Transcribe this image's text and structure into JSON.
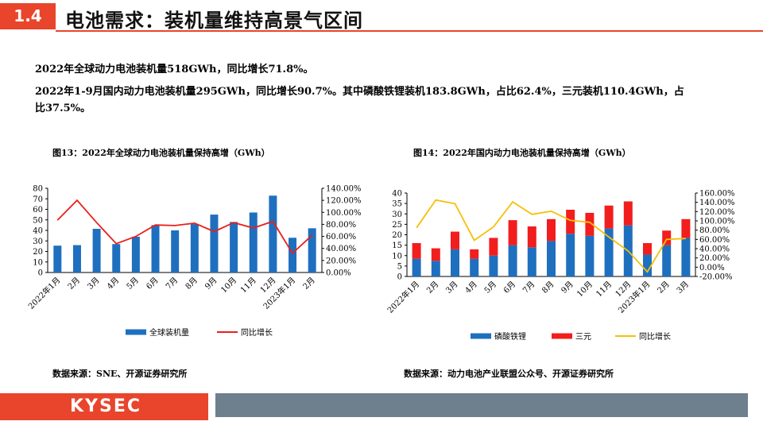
{
  "header": {
    "section_number": "1.4",
    "title": "电池需求：装机量维持高景气区间"
  },
  "paragraphs": [
    "2022年全球动力电池装机量518GWh，同比增长71.8%。",
    "2022年1-9月国内动力电池装机量295GWh，同比增长90.7%。其中磷酸铁锂装机183.8GWh，占比62.4%，三元装机110.4GWh，占比37.5%。"
  ],
  "colors": {
    "accent": "#e8452c",
    "bar_blue": "#1f6fbf",
    "line_red": "#e8201b",
    "bar_red": "#f21d1d",
    "line_gold": "#f5c00a",
    "footer_grey": "#6e7f8d"
  },
  "footer": {
    "logo": "KYSEC"
  },
  "chart_data": [
    {
      "type": "bar",
      "title": "图13：2022年全球动力电池装机量保持高增（GWh）",
      "categories": [
        "2022年1月",
        "2月",
        "3月",
        "4月",
        "5月",
        "6月",
        "7月",
        "8月",
        "9月",
        "10月",
        "11月",
        "12月",
        "2023年1月",
        "2月"
      ],
      "series": [
        {
          "name": "全球装机量",
          "kind": "bar",
          "axis": "left",
          "color": "#1f6fbf",
          "values": [
            25.5,
            26,
            41.5,
            27,
            34,
            45,
            40,
            46,
            55,
            48,
            57,
            73,
            33,
            42
          ]
        },
        {
          "name": "同比增长",
          "kind": "line",
          "axis": "right",
          "color": "#e8201b",
          "values": [
            87,
            120,
            83,
            48,
            60,
            79,
            78,
            82,
            68,
            83,
            74,
            85,
            32,
            62
          ]
        }
      ],
      "ylim": [
        0,
        80
      ],
      "yticks": [
        "0",
        "10",
        "20",
        "30",
        "40",
        "50",
        "60",
        "70",
        "80"
      ],
      "y2lim": [
        0,
        140
      ],
      "y2ticks": [
        "0.00%",
        "20.00%",
        "40.00%",
        "60.00%",
        "80.00%",
        "100.00%",
        "120.00%",
        "140.00%"
      ],
      "legend": "bottom",
      "grid": false,
      "source": "数据来源：SNE、开源证券研究所"
    },
    {
      "type": "bar",
      "title": "图14：2022年国内动力电池装机量保持高增（GWh）",
      "categories": [
        "2022年1月",
        "2月",
        "3月",
        "4月",
        "5月",
        "6月",
        "7月",
        "8月",
        "9月",
        "10月",
        "11月",
        "12月",
        "2023年1月",
        "2月",
        "3月"
      ],
      "series": [
        {
          "name": "磷酸铁锂",
          "kind": "stacked-bar",
          "axis": "left",
          "color": "#1f6fbf",
          "values": [
            8.5,
            7.5,
            13,
            8.5,
            10,
            15,
            14,
            17,
            20.5,
            19.5,
            23,
            24.5,
            10.5,
            15,
            18.5
          ]
        },
        {
          "name": "三元",
          "kind": "stacked-bar",
          "axis": "left",
          "color": "#f21d1d",
          "values": [
            7.5,
            6,
            8.5,
            4.5,
            8.5,
            12,
            10,
            10.5,
            11.5,
            11,
            11,
            11.5,
            5.5,
            7,
            9
          ]
        },
        {
          "name": "同比增长",
          "kind": "line",
          "axis": "right",
          "color": "#f5c00a",
          "values": [
            85,
            145,
            137,
            58,
            87,
            141,
            114,
            121,
            101,
            97,
            65,
            35,
            -10,
            60,
            62
          ]
        }
      ],
      "ylim": [
        0,
        40
      ],
      "yticks": [
        "0",
        "5",
        "10",
        "15",
        "20",
        "25",
        "30",
        "35",
        "40"
      ],
      "y2lim": [
        -20,
        160
      ],
      "y2ticks": [
        "-20.00%",
        "0.00%",
        "20.00%",
        "40.00%",
        "60.00%",
        "80.00%",
        "100.00%",
        "120.00%",
        "140.00%",
        "160.00%"
      ],
      "legend": "bottom",
      "grid": false,
      "source": "数据来源：动力电池产业联盟公众号、开源证券研究所"
    }
  ]
}
